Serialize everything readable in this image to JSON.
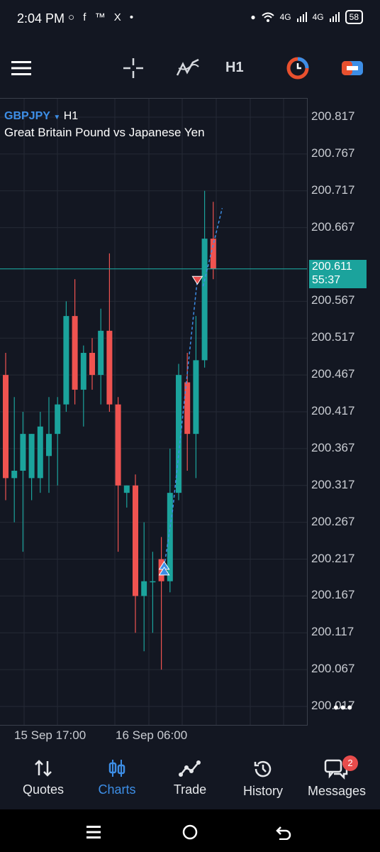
{
  "status_bar": {
    "time": "2:04 PM",
    "left_icons": "○ f ™ X •",
    "signal1": "4G",
    "signal2": "4G",
    "battery": "58"
  },
  "toolbar": {
    "timeframe": "H1",
    "icons": [
      "menu-icon",
      "crosshair-icon",
      "indicators-icon",
      "chart-type-icon",
      "trade-panel-icon"
    ],
    "accent_orange": "#e8502e",
    "accent_blue": "#3d8ee6"
  },
  "chart": {
    "symbol": "GBPJPY",
    "symbol_timeframe": "H1",
    "description": "Great Britain Pound vs Japanese Yen",
    "price_labels": [
      "200.817",
      "200.767",
      "200.717",
      "200.667",
      "200.567",
      "200.517",
      "200.467",
      "200.417",
      "200.367",
      "200.317",
      "200.267",
      "200.217",
      "200.167",
      "200.117",
      "200.067",
      "200.017"
    ],
    "current_price": "200.611",
    "countdown": "55:37",
    "time_labels": [
      "15 Sep 17:00",
      "16 Sep 06:00"
    ],
    "more": "•••"
  },
  "chart_data": {
    "type": "candlestick",
    "ylim": [
      199.992,
      200.842
    ],
    "bull_color": "#1ba39c",
    "bear_color": "#ef5350",
    "current_price": 200.611,
    "candles": [
      {
        "o": 200.467,
        "h": 200.497,
        "c": 200.327,
        "l": 200.297
      },
      {
        "o": 200.327,
        "h": 200.437,
        "c": 200.337,
        "l": 200.267
      },
      {
        "o": 200.337,
        "h": 200.417,
        "c": 200.387,
        "l": 200.227
      },
      {
        "o": 200.327,
        "h": 200.387,
        "c": 200.387,
        "l": 200.297
      },
      {
        "o": 200.327,
        "h": 200.417,
        "c": 200.397,
        "l": 200.307
      },
      {
        "o": 200.357,
        "h": 200.437,
        "c": 200.387,
        "l": 200.307
      },
      {
        "o": 200.387,
        "h": 200.437,
        "c": 200.427,
        "l": 200.317
      },
      {
        "o": 200.427,
        "h": 200.567,
        "c": 200.547,
        "l": 200.417
      },
      {
        "o": 200.547,
        "h": 200.597,
        "c": 200.447,
        "l": 200.427
      },
      {
        "o": 200.447,
        "h": 200.507,
        "c": 200.497,
        "l": 200.397
      },
      {
        "o": 200.497,
        "h": 200.517,
        "c": 200.467,
        "l": 200.447
      },
      {
        "o": 200.467,
        "h": 200.557,
        "c": 200.527,
        "l": 200.427
      },
      {
        "o": 200.527,
        "h": 200.632,
        "c": 200.427,
        "l": 200.417
      },
      {
        "o": 200.427,
        "h": 200.437,
        "c": 200.317,
        "l": 200.227
      },
      {
        "o": 200.307,
        "h": 200.317,
        "c": 200.317,
        "l": 200.287
      },
      {
        "o": 200.317,
        "h": 200.332,
        "c": 200.167,
        "l": 200.117
      },
      {
        "o": 200.167,
        "h": 200.267,
        "c": 200.187,
        "l": 200.092
      },
      {
        "o": 200.187,
        "h": 200.227,
        "c": 200.187,
        "l": 200.117
      },
      {
        "o": 200.217,
        "h": 200.247,
        "c": 200.187,
        "l": 200.067
      },
      {
        "o": 200.187,
        "h": 200.367,
        "c": 200.307,
        "l": 200.172
      },
      {
        "o": 200.307,
        "h": 200.482,
        "c": 200.467,
        "l": 200.297
      },
      {
        "o": 200.457,
        "h": 200.497,
        "c": 200.387,
        "l": 200.337
      },
      {
        "o": 200.387,
        "h": 200.547,
        "c": 200.487,
        "l": 200.327
      },
      {
        "o": 200.487,
        "h": 200.717,
        "c": 200.652,
        "l": 200.477
      },
      {
        "o": 200.652,
        "h": 200.702,
        "c": 200.611,
        "l": 200.597
      }
    ],
    "trade_markers": [
      {
        "type": "buy",
        "candle": 18,
        "price": 200.207
      },
      {
        "type": "sell",
        "candle": 22,
        "price": 200.597
      }
    ]
  },
  "nav": {
    "items": [
      {
        "label": "Quotes"
      },
      {
        "label": "Charts"
      },
      {
        "label": "Trade"
      },
      {
        "label": "History"
      },
      {
        "label": "Messages"
      }
    ],
    "messages_badge": "2"
  }
}
